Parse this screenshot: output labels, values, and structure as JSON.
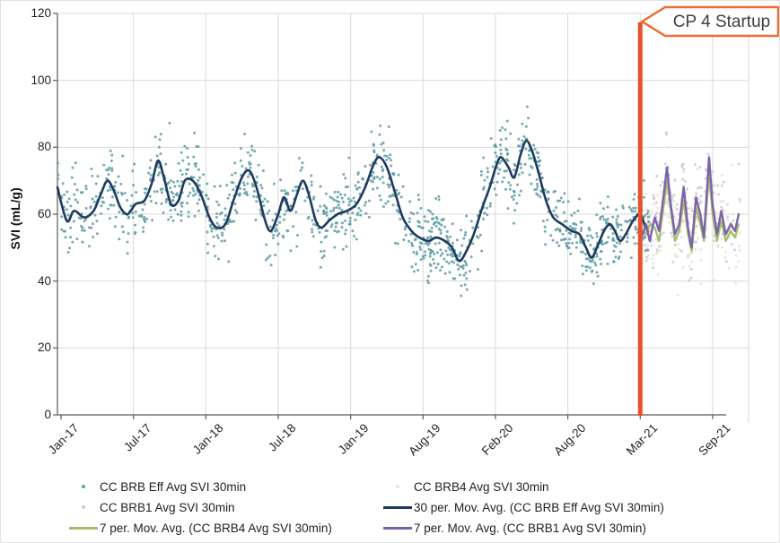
{
  "axes": {
    "y_title": "SVI (mL/g)",
    "y_ticks": [
      "0",
      "20",
      "40",
      "60",
      "80",
      "100",
      "120"
    ],
    "x_ticks": [
      "Jan-17",
      "Jul-17",
      "Jan-18",
      "Jul-18",
      "Jan-19",
      "Aug-19",
      "Feb-20",
      "Aug-20",
      "Mar-21",
      "Sep-21"
    ]
  },
  "legend": {
    "items": [
      {
        "label": "CC BRB Eff Avg SVI 30min",
        "marker": "dot",
        "color": "#5E9CA3"
      },
      {
        "label": "CC BRB4 Avg SVI 30min",
        "marker": "dot",
        "color": "#E3E7CB"
      },
      {
        "label": "CC BRB1 Avg SVI 30min",
        "marker": "dot",
        "color": "#CBC7DA"
      },
      {
        "label": "30 per. Mov. Avg. (CC BRB Eff Avg SVI 30min)",
        "marker": "line",
        "color": "#1F3A5F"
      },
      {
        "label": "7 per. Mov. Avg. (CC BRB4 Avg SVI 30min)",
        "marker": "line",
        "color": "#A3BC6B"
      },
      {
        "label": "7 per. Mov. Avg. (CC BRB1 Avg SVI 30min)",
        "marker": "line",
        "color": "#7C63A8"
      }
    ]
  },
  "chart_data": {
    "type": "scatter",
    "x_unit_note": "x values are in tick-index units: 0 = Jan-17 tick, 9 = Sep-21 tick (category axis, ticks evenly spaced)",
    "ylabel": "SVI (mL/g)",
    "ylim": [
      0,
      120
    ],
    "y_major_unit": 20,
    "x_tick_labels": [
      "Jan-17",
      "Jul-17",
      "Jan-18",
      "Jul-18",
      "Jan-19",
      "Aug-19",
      "Feb-20",
      "Aug-20",
      "Mar-21",
      "Sep-21"
    ],
    "grid": true,
    "legend_position": "bottom",
    "annotation": {
      "label": "CP 4 Startup",
      "x_tick_index": 8,
      "line_color": "#E8512B",
      "box_border_color": "#ED6B35",
      "box_fill": "#FFFFFF"
    },
    "series": [
      {
        "name": "CC BRB Eff Avg SVI 30min",
        "kind": "scatter",
        "color": "#5E9CA3",
        "marker_radius": 1.5,
        "n_points": 1250,
        "noise_sd": 5.2,
        "outlier_rate": 0.015,
        "x_range_ticks": [
          -0.05,
          8.12
        ],
        "trend_ref": 3,
        "seed": 42,
        "value_range_observed": [
          36,
          97
        ]
      },
      {
        "name": "CC BRB1 Avg SVI 30min",
        "kind": "scatter",
        "color": "#CBC7DA",
        "marker_radius": 1.5,
        "n_points": 175,
        "noise_sd": 6.2,
        "outlier_rate": 0.03,
        "x_range_ticks": [
          8.0,
          9.38
        ],
        "trend_ref": 5,
        "seed": 7,
        "value_range_observed": [
          46,
          93
        ]
      },
      {
        "name": "CC BRB4 Avg SVI 30min",
        "kind": "scatter",
        "color": "#E3E7CB",
        "marker_radius": 1.5,
        "n_points": 175,
        "noise_sd": 6.2,
        "outlier_rate": 0.03,
        "x_range_ticks": [
          8.0,
          9.38
        ],
        "trend_ref": 4,
        "seed": 13,
        "value_range_observed": [
          46,
          92
        ]
      },
      {
        "name": "30 per. Mov. Avg. (CC BRB Eff Avg SVI 30min)",
        "kind": "line",
        "color": "#1F3A5F",
        "width": 2.6,
        "smooth": true,
        "points": [
          [
            -0.05,
            68
          ],
          [
            0.08,
            58
          ],
          [
            0.18,
            61
          ],
          [
            0.32,
            59
          ],
          [
            0.45,
            61
          ],
          [
            0.55,
            66
          ],
          [
            0.64,
            70
          ],
          [
            0.73,
            67
          ],
          [
            0.82,
            62
          ],
          [
            0.92,
            60
          ],
          [
            1.03,
            63
          ],
          [
            1.15,
            64
          ],
          [
            1.25,
            69
          ],
          [
            1.34,
            76
          ],
          [
            1.42,
            71
          ],
          [
            1.52,
            63
          ],
          [
            1.62,
            64
          ],
          [
            1.71,
            70
          ],
          [
            1.82,
            70
          ],
          [
            1.93,
            66
          ],
          [
            2.05,
            59
          ],
          [
            2.15,
            56
          ],
          [
            2.27,
            57
          ],
          [
            2.38,
            64
          ],
          [
            2.5,
            71
          ],
          [
            2.6,
            73
          ],
          [
            2.7,
            68
          ],
          [
            2.82,
            58
          ],
          [
            2.9,
            55
          ],
          [
            3.0,
            60
          ],
          [
            3.08,
            65
          ],
          [
            3.17,
            61
          ],
          [
            3.26,
            66
          ],
          [
            3.34,
            70
          ],
          [
            3.42,
            66
          ],
          [
            3.52,
            58
          ],
          [
            3.6,
            56
          ],
          [
            3.7,
            58
          ],
          [
            3.82,
            60
          ],
          [
            3.95,
            61
          ],
          [
            4.08,
            63
          ],
          [
            4.2,
            68
          ],
          [
            4.32,
            75
          ],
          [
            4.4,
            77
          ],
          [
            4.5,
            74
          ],
          [
            4.62,
            66
          ],
          [
            4.72,
            59
          ],
          [
            4.84,
            55
          ],
          [
            4.95,
            53
          ],
          [
            5.08,
            52
          ],
          [
            5.18,
            53
          ],
          [
            5.3,
            52
          ],
          [
            5.4,
            50
          ],
          [
            5.5,
            46
          ],
          [
            5.6,
            49
          ],
          [
            5.7,
            54
          ],
          [
            5.82,
            62
          ],
          [
            5.92,
            68
          ],
          [
            6.02,
            75
          ],
          [
            6.08,
            77
          ],
          [
            6.18,
            74
          ],
          [
            6.26,
            71
          ],
          [
            6.35,
            78
          ],
          [
            6.43,
            82
          ],
          [
            6.52,
            78
          ],
          [
            6.6,
            72
          ],
          [
            6.7,
            64
          ],
          [
            6.8,
            59
          ],
          [
            6.92,
            57
          ],
          [
            7.05,
            55
          ],
          [
            7.16,
            54
          ],
          [
            7.25,
            50
          ],
          [
            7.33,
            47
          ],
          [
            7.42,
            51
          ],
          [
            7.5,
            55
          ],
          [
            7.58,
            57
          ],
          [
            7.65,
            55
          ],
          [
            7.72,
            52
          ],
          [
            7.8,
            54
          ],
          [
            7.9,
            58
          ],
          [
            8.0,
            60
          ],
          [
            8.07,
            56
          ]
        ]
      },
      {
        "name": "7 per. Mov. Avg. (CC BRB4 Avg SVI 30min)",
        "kind": "line",
        "color": "#A3BC6B",
        "width": 2.2,
        "smooth": false,
        "points": [
          [
            8.02,
            55
          ],
          [
            8.08,
            54
          ],
          [
            8.14,
            57
          ],
          [
            8.2,
            56
          ],
          [
            8.26,
            52
          ],
          [
            8.32,
            62
          ],
          [
            8.37,
            70
          ],
          [
            8.43,
            60
          ],
          [
            8.48,
            52
          ],
          [
            8.54,
            55
          ],
          [
            8.6,
            64
          ],
          [
            8.66,
            54
          ],
          [
            8.71,
            49
          ],
          [
            8.77,
            62
          ],
          [
            8.83,
            57
          ],
          [
            8.88,
            52
          ],
          [
            8.95,
            72
          ],
          [
            9.0,
            60
          ],
          [
            9.06,
            52
          ],
          [
            9.12,
            58
          ],
          [
            9.18,
            52
          ],
          [
            9.25,
            55
          ],
          [
            9.31,
            53
          ],
          [
            9.36,
            57
          ]
        ]
      },
      {
        "name": "7 per. Mov. Avg. (CC BRB1 Avg SVI 30min)",
        "kind": "line",
        "color": "#7C63A8",
        "width": 2.4,
        "smooth": false,
        "points": [
          [
            8.02,
            53
          ],
          [
            8.08,
            57
          ],
          [
            8.13,
            52
          ],
          [
            8.2,
            59
          ],
          [
            8.26,
            55
          ],
          [
            8.32,
            65
          ],
          [
            8.37,
            74
          ],
          [
            8.42,
            63
          ],
          [
            8.48,
            54
          ],
          [
            8.54,
            57
          ],
          [
            8.6,
            68
          ],
          [
            8.66,
            56
          ],
          [
            8.71,
            50
          ],
          [
            8.77,
            65
          ],
          [
            8.83,
            60
          ],
          [
            8.88,
            53
          ],
          [
            8.95,
            77
          ],
          [
            9.0,
            63
          ],
          [
            9.06,
            54
          ],
          [
            9.12,
            61
          ],
          [
            9.18,
            54
          ],
          [
            9.25,
            57
          ],
          [
            9.31,
            55
          ],
          [
            9.36,
            60
          ]
        ]
      }
    ]
  }
}
